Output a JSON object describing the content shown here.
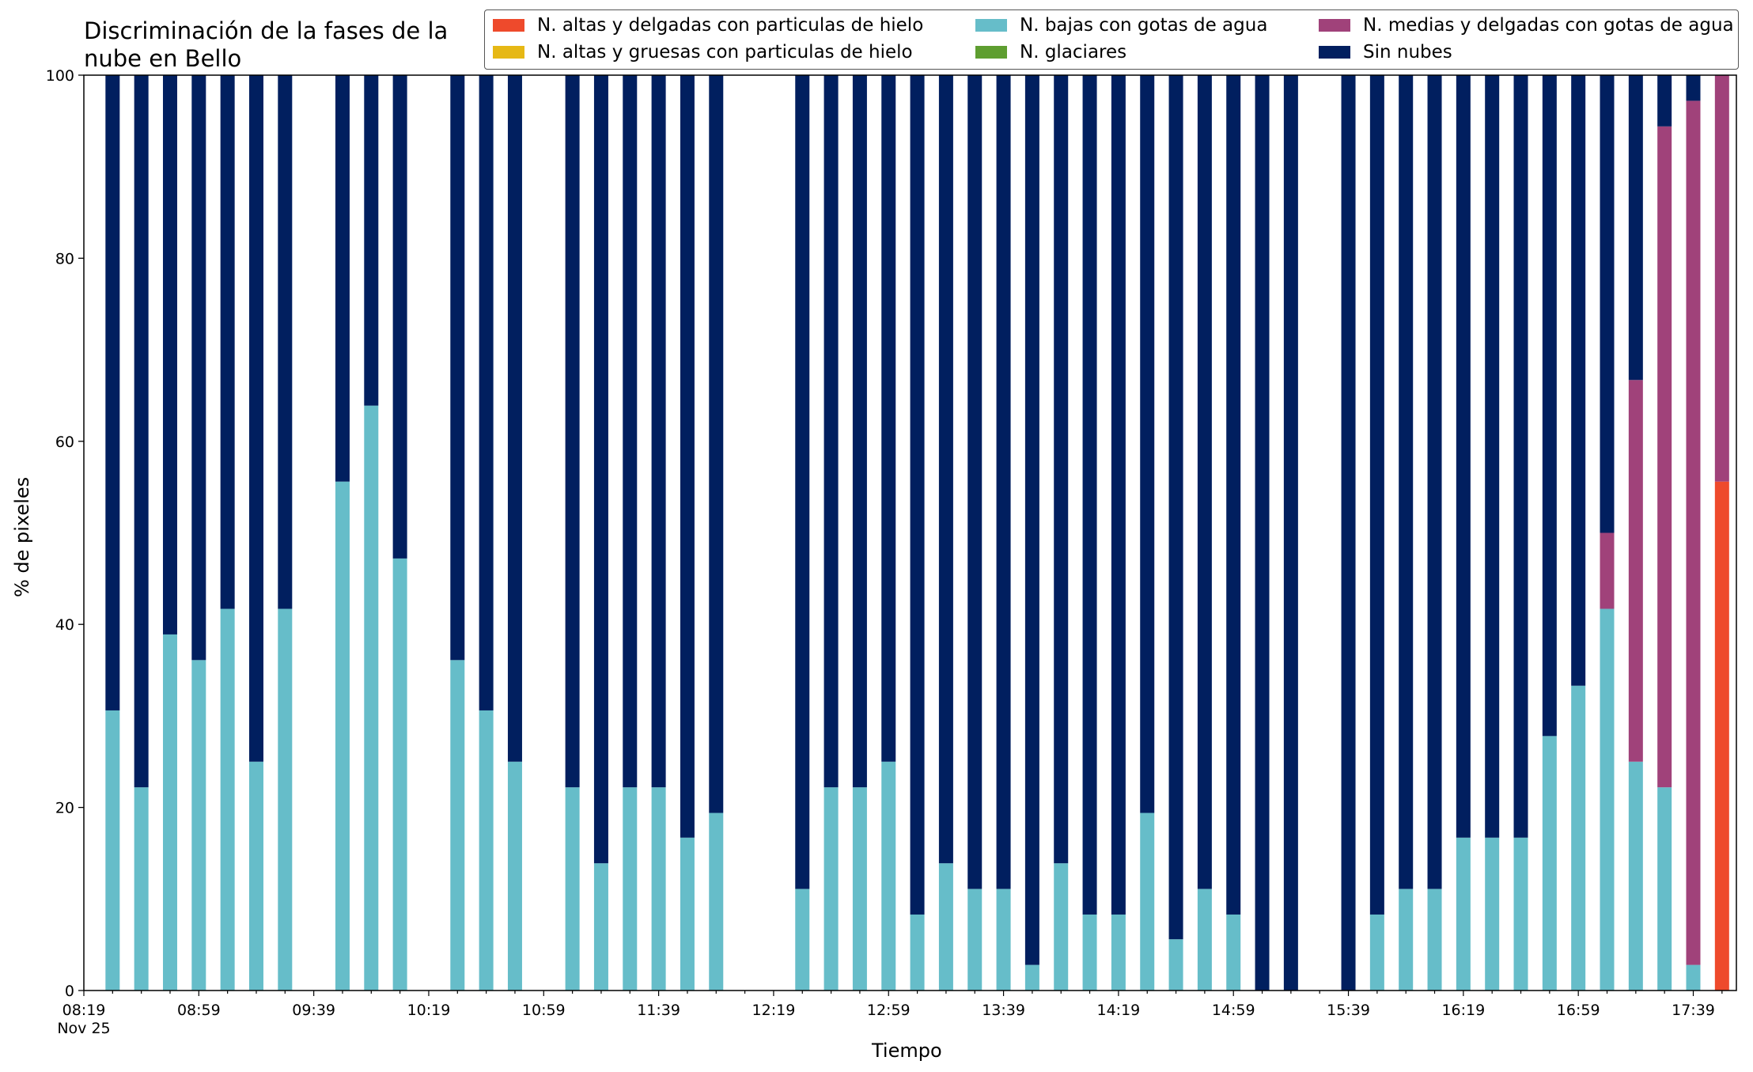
{
  "chart_data": {
    "type": "bar",
    "stacked": true,
    "title": "Discriminación de la fases de la\nnube en Bello",
    "xlabel": "Tiempo",
    "ylabel": "% de pixeles",
    "ylim": [
      0,
      100
    ],
    "yticks": [
      "0",
      "20",
      "40",
      "60",
      "80",
      "100"
    ],
    "xticks": [
      "08:19\nNov 25",
      "08:59",
      "09:39",
      "10:19",
      "10:59",
      "11:39",
      "12:19",
      "12:59",
      "13:39",
      "14:19",
      "14:59",
      "15:39",
      "16:19",
      "16:59",
      "17:39"
    ],
    "x_range_minutes": [
      "08:19",
      "17:54"
    ],
    "legend_position": "top-right",
    "grid": false,
    "times": [
      "08:29",
      "08:39",
      "08:49",
      "08:59",
      "09:09",
      "09:19",
      "09:29",
      "09:49",
      "09:59",
      "10:09",
      "10:29",
      "10:39",
      "10:49",
      "11:09",
      "11:19",
      "11:29",
      "11:39",
      "11:49",
      "11:59",
      "12:29",
      "12:39",
      "12:49",
      "12:59",
      "13:09",
      "13:19",
      "13:29",
      "13:39",
      "13:49",
      "13:59",
      "14:09",
      "14:19",
      "14:29",
      "14:39",
      "14:49",
      "14:59",
      "15:09",
      "15:19",
      "15:39",
      "15:49",
      "15:59",
      "16:09",
      "16:19",
      "16:29",
      "16:39",
      "16:49",
      "16:59",
      "17:09",
      "17:19",
      "17:29",
      "17:39",
      "17:49"
    ],
    "series": [
      {
        "name": "N. altas y delgadas con particulas de hielo",
        "color": "#EE4A2C",
        "values": [
          0,
          0,
          0,
          0,
          0,
          0,
          0,
          0,
          0,
          0,
          0,
          0,
          0,
          0,
          0,
          0,
          0,
          0,
          0,
          0,
          0,
          0,
          0,
          0,
          0,
          0,
          0,
          0,
          0,
          0,
          0,
          0,
          0,
          0,
          0,
          0,
          0,
          0,
          0,
          0,
          0,
          0,
          0,
          0,
          0,
          0,
          0,
          0,
          0,
          0,
          55.6
        ]
      },
      {
        "name": "N. altas y gruesas con particulas de hielo",
        "color": "#E6B815",
        "values": [
          0,
          0,
          0,
          0,
          0,
          0,
          0,
          0,
          0,
          0,
          0,
          0,
          0,
          0,
          0,
          0,
          0,
          0,
          0,
          0,
          0,
          0,
          0,
          0,
          0,
          0,
          0,
          0,
          0,
          0,
          0,
          0,
          0,
          0,
          0,
          0,
          0,
          0,
          0,
          0,
          0,
          0,
          0,
          0,
          0,
          0,
          0,
          0,
          0,
          0,
          0
        ]
      },
      {
        "name": "N. bajas con gotas de agua",
        "color": "#66BDC9",
        "values": [
          30.6,
          22.2,
          38.9,
          36.1,
          41.7,
          25,
          41.7,
          55.6,
          63.9,
          47.2,
          36.1,
          30.6,
          25,
          22.2,
          13.9,
          22.2,
          22.2,
          16.7,
          19.4,
          11.1,
          22.2,
          22.2,
          25,
          8.3,
          13.9,
          11.1,
          11.1,
          2.8,
          13.9,
          8.3,
          8.3,
          19.4,
          5.6,
          11.1,
          8.3,
          0,
          0,
          0,
          8.3,
          11.1,
          11.1,
          16.7,
          16.7,
          16.7,
          27.8,
          33.3,
          41.7,
          25,
          22.2,
          2.8,
          0
        ]
      },
      {
        "name": "N. glaciares",
        "color": "#5E9E30",
        "values": [
          0,
          0,
          0,
          0,
          0,
          0,
          0,
          0,
          0,
          0,
          0,
          0,
          0,
          0,
          0,
          0,
          0,
          0,
          0,
          0,
          0,
          0,
          0,
          0,
          0,
          0,
          0,
          0,
          0,
          0,
          0,
          0,
          0,
          0,
          0,
          0,
          0,
          0,
          0,
          0,
          0,
          0,
          0,
          0,
          0,
          0,
          0,
          0,
          0,
          0,
          0
        ]
      },
      {
        "name": "N. medias y delgadas con gotas de agua",
        "color": "#A0427A",
        "values": [
          0,
          0,
          0,
          0,
          0,
          0,
          0,
          0,
          0,
          0,
          0,
          0,
          0,
          0,
          0,
          0,
          0,
          0,
          0,
          0,
          0,
          0,
          0,
          0,
          0,
          0,
          0,
          0,
          0,
          0,
          0,
          0,
          0,
          0,
          0,
          0,
          0,
          0,
          0,
          0,
          0,
          0,
          0,
          0,
          0,
          0,
          8.3,
          41.7,
          72.2,
          94.4,
          44.4
        ]
      },
      {
        "name": "Sin nubes",
        "color": "#011F5F",
        "values": [
          69.4,
          77.8,
          61.1,
          63.9,
          58.3,
          75,
          58.3,
          44.4,
          36.1,
          52.8,
          63.9,
          69.4,
          75,
          77.8,
          86.1,
          77.8,
          77.8,
          83.3,
          80.6,
          88.9,
          77.8,
          77.8,
          75,
          91.7,
          86.1,
          88.9,
          88.9,
          97.2,
          86.1,
          91.7,
          91.7,
          80.6,
          94.4,
          88.9,
          91.7,
          100,
          100,
          100,
          91.7,
          88.9,
          88.9,
          83.3,
          83.3,
          83.3,
          72.2,
          66.7,
          50,
          33.3,
          5.6,
          2.8,
          0
        ]
      }
    ]
  }
}
